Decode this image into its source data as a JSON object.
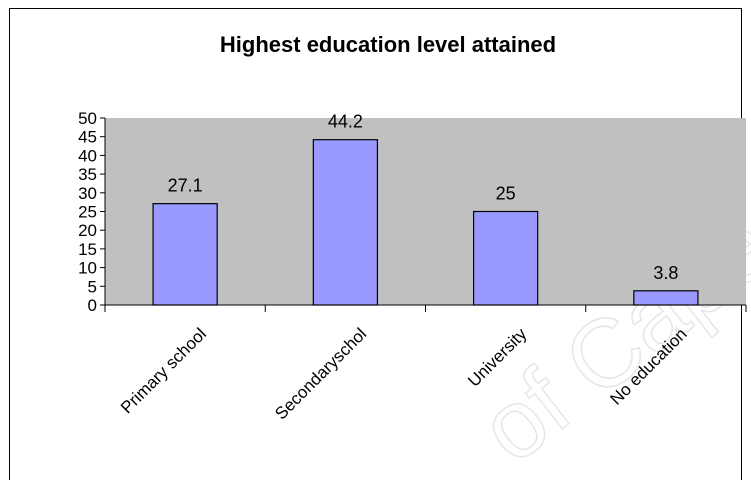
{
  "chart_data": {
    "type": "bar",
    "title": "Highest education level attained",
    "categories": [
      "Primary school",
      "Secondaryschol",
      "University",
      "No education"
    ],
    "values": [
      27.1,
      44.2,
      25,
      3.8
    ],
    "data_labels": [
      "27.1",
      "44.2",
      "25",
      "3.8"
    ],
    "ylim": [
      0,
      50
    ],
    "yticks": [
      0,
      5,
      10,
      15,
      20,
      25,
      30,
      35,
      40,
      45,
      50
    ],
    "xlabel": "",
    "ylabel": "",
    "grid": false,
    "legend": "none",
    "colors": {
      "bar": "#9999ff",
      "plot_area": "#c0c0c0",
      "border": "#000000"
    }
  },
  "watermark": "of Cape"
}
